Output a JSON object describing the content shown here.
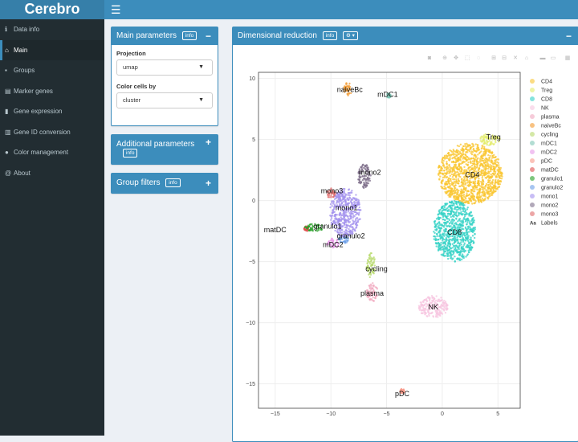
{
  "app": {
    "title": "Cerebro",
    "menu_icon": "hamburger-icon"
  },
  "sidebar": {
    "items": [
      {
        "icon": "info-icon",
        "glyph": "ℹ",
        "label": "Data info"
      },
      {
        "icon": "home-icon",
        "glyph": "⌂",
        "label": "Main"
      },
      {
        "icon": "users-icon",
        "glyph": "▪",
        "label": "Groups"
      },
      {
        "icon": "list-icon",
        "glyph": "▤",
        "label": "Marker genes"
      },
      {
        "icon": "signal-icon",
        "glyph": "▮",
        "label": "Gene expression"
      },
      {
        "icon": "barcode-icon",
        "glyph": "▥",
        "label": "Gene ID conversion"
      },
      {
        "icon": "palette-icon",
        "glyph": "●",
        "label": "Color management"
      },
      {
        "icon": "at-icon",
        "glyph": "@",
        "label": "About"
      }
    ],
    "active": "Main"
  },
  "main_params": {
    "title": "Main parameters",
    "info": "info",
    "collapse": "−",
    "projection_label": "Projection",
    "projection_value": "umap",
    "color_label": "Color cells by",
    "color_value": "cluster"
  },
  "additional_params": {
    "title": "Additional parameters",
    "info": "info",
    "expand": "+"
  },
  "group_filters": {
    "title": "Group filters",
    "info": "info",
    "expand": "+"
  },
  "dimred": {
    "title": "Dimensional reduction",
    "info": "info",
    "gear": "⚙ ▾",
    "collapse": "−"
  },
  "modebar_icons": [
    "camera-icon",
    "zoom-icon",
    "pan-icon",
    "box-select-icon",
    "lasso-icon",
    "zoom-in-icon",
    "zoom-out-icon",
    "autoscale-icon",
    "reset-icon",
    "spike-icon",
    "hover-closest-icon",
    "hover-compare-icon",
    "plotly-logo-icon"
  ],
  "chart_data": {
    "type": "scatter",
    "title": "",
    "xlabel": "",
    "ylabel": "",
    "xlim": [
      -16.5,
      7
    ],
    "ylim": [
      -17,
      10.5
    ],
    "xticks": [
      -15,
      -10,
      -5,
      0,
      5
    ],
    "yticks": [
      10,
      5,
      0,
      -5,
      -10,
      -15
    ],
    "grid": true,
    "legend_position": "right",
    "clusters": [
      {
        "name": "CD4",
        "color": "#f9c530",
        "cx": 2.5,
        "cy": 2.2,
        "rx": 2.9,
        "ry": 2.5,
        "label_x": 2.7,
        "label_y": 2.1
      },
      {
        "name": "Treg",
        "color": "#e3ec6a",
        "cx": 4.3,
        "cy": 5.0,
        "rx": 0.9,
        "ry": 0.5,
        "label_x": 4.6,
        "label_y": 5.2
      },
      {
        "name": "CD8",
        "color": "#34d1c6",
        "cx": 1.1,
        "cy": -2.5,
        "rx": 1.9,
        "ry": 2.5,
        "label_x": 1.1,
        "label_y": -2.6
      },
      {
        "name": "NK",
        "color": "#f7c6e0",
        "cx": -0.8,
        "cy": -8.7,
        "rx": 1.3,
        "ry": 0.9,
        "label_x": -0.8,
        "label_y": -8.7
      },
      {
        "name": "plasma",
        "color": "#f0a8bf",
        "cx": -6.3,
        "cy": -7.5,
        "rx": 0.5,
        "ry": 0.8,
        "label_x": -6.3,
        "label_y": -7.6
      },
      {
        "name": "naiveBc",
        "color": "#f39a2f",
        "cx": -8.5,
        "cy": 9.1,
        "rx": 0.35,
        "ry": 0.6,
        "label_x": -8.3,
        "label_y": 9.1
      },
      {
        "name": "cycling",
        "color": "#b7d96b",
        "cx": -6.4,
        "cy": -5.3,
        "rx": 0.4,
        "ry": 1.0,
        "label_x": -5.9,
        "label_y": -5.6
      },
      {
        "name": "mDC1",
        "color": "#7fc6b6",
        "cx": -4.8,
        "cy": 8.6,
        "rx": 0.2,
        "ry": 0.2,
        "label_x": -4.9,
        "label_y": 8.7
      },
      {
        "name": "mDC2",
        "color": "#e89ae8",
        "cx": -9.8,
        "cy": -3.5,
        "rx": 0.6,
        "ry": 0.4,
        "label_x": -9.8,
        "label_y": -3.6
      },
      {
        "name": "pDC",
        "color": "#f89a8a",
        "cx": -3.6,
        "cy": -15.6,
        "rx": 0.2,
        "ry": 0.2,
        "label_x": -3.6,
        "label_y": -15.8
      },
      {
        "name": "matDC",
        "color": "#e05050",
        "cx": -12.2,
        "cy": -2.3,
        "rx": 0.2,
        "ry": 0.2,
        "label_x": -15.0,
        "label_y": -2.4
      },
      {
        "name": "granulo1",
        "color": "#27a027",
        "cx": -11.5,
        "cy": -2.2,
        "rx": 0.9,
        "ry": 0.3,
        "label_x": -10.3,
        "label_y": -2.1
      },
      {
        "name": "granulo2",
        "color": "#6a9ee8",
        "cx": -8.9,
        "cy": -3.2,
        "rx": 0.5,
        "ry": 0.3,
        "label_x": -8.2,
        "label_y": -2.9
      },
      {
        "name": "mono1",
        "color": "#a391ee",
        "cx": -8.7,
        "cy": -1.0,
        "rx": 1.4,
        "ry": 2.0,
        "label_x": -8.6,
        "label_y": -0.6
      },
      {
        "name": "mono2",
        "color": "#7d6e8a",
        "cx": -7.0,
        "cy": 2.0,
        "rx": 0.6,
        "ry": 1.0,
        "label_x": -6.5,
        "label_y": 2.3
      },
      {
        "name": "mono3",
        "color": "#e06a6a",
        "cx": -10.0,
        "cy": 0.6,
        "rx": 0.4,
        "ry": 0.4,
        "label_x": -9.9,
        "label_y": 0.8
      }
    ],
    "legend_extra": "Labels"
  }
}
